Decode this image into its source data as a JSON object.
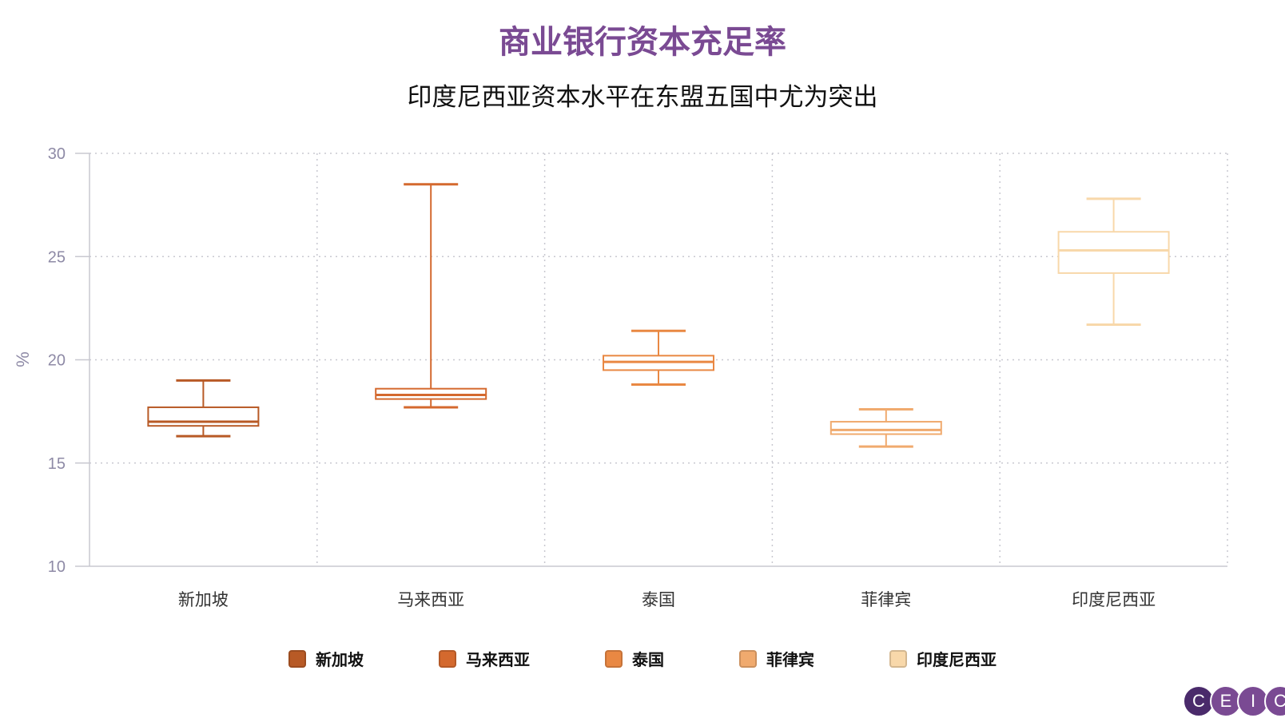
{
  "header": {
    "title": "商业银行资本充足率",
    "subtitle": "印度尼西亚资本水平在东盟五国中尤为突出"
  },
  "chart_data": {
    "type": "box",
    "title": "商业银行资本充足率",
    "subtitle": "印度尼西亚资本水平在东盟五国中尤为突出",
    "ylabel": "%",
    "ylim": [
      10,
      30
    ],
    "yticks": [
      10,
      15,
      20,
      25,
      30
    ],
    "grid": true,
    "legend_position": "bottom",
    "categories": [
      "新加坡",
      "马来西亚",
      "泰国",
      "菲律宾",
      "印度尼西亚"
    ],
    "series": [
      {
        "name": "新加坡",
        "color": "#b85a26",
        "min": 16.3,
        "q1": 16.8,
        "median": 17.0,
        "q3": 17.7,
        "max": 19.0
      },
      {
        "name": "马来西亚",
        "color": "#d4692e",
        "min": 17.7,
        "q1": 18.1,
        "median": 18.3,
        "q3": 18.6,
        "max": 28.5
      },
      {
        "name": "泰国",
        "color": "#e98843",
        "min": 18.8,
        "q1": 19.5,
        "median": 19.9,
        "q3": 20.2,
        "max": 21.4
      },
      {
        "name": "菲律宾",
        "color": "#f0aa6e",
        "min": 15.8,
        "q1": 16.4,
        "median": 16.6,
        "q3": 17.0,
        "max": 17.6
      },
      {
        "name": "印度尼西亚",
        "color": "#f8d8aa",
        "min": 21.7,
        "q1": 24.2,
        "median": 25.3,
        "q3": 26.2,
        "max": 27.8
      }
    ]
  },
  "logo": {
    "letters": [
      "C",
      "E",
      "I",
      "C"
    ]
  }
}
